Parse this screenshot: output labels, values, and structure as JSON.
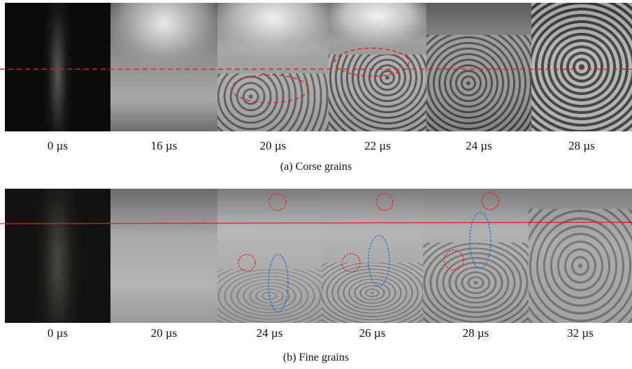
{
  "panel_a": {
    "times": [
      "0 µs",
      "16 µs",
      "20 µs",
      "22 µs",
      "24 µs",
      "28 µs"
    ],
    "caption": "(a) Corse grains"
  },
  "panel_b": {
    "times": [
      "0 µs",
      "20 µs",
      "24 µs",
      "26 µs",
      "28 µs",
      "32 µs"
    ],
    "caption": "(b) Fine grains"
  },
  "colors": {
    "reference_line": "#e02020",
    "red_marker": "#e02020",
    "blue_marker": "#1e6fd0"
  }
}
